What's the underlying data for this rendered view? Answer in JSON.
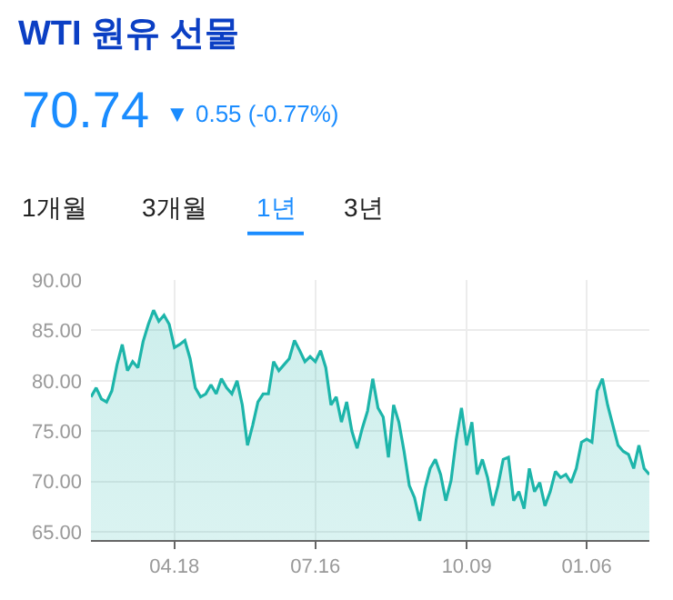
{
  "chart_data": {
    "type": "area",
    "title": "WTI 원유 선물",
    "annotations": [
      "70.74",
      "▼ 0.55 (-0.77%)",
      "1개월",
      "3개월",
      "1년",
      "3년"
    ],
    "categories": [
      null,
      null,
      null,
      null,
      null,
      null,
      null,
      null,
      null,
      null,
      null,
      null,
      null,
      null,
      null,
      null,
      "04.18",
      null,
      null,
      null,
      null,
      null,
      null,
      null,
      null,
      null,
      null,
      null,
      null,
      null,
      null,
      null,
      null,
      null,
      null,
      null,
      null,
      null,
      null,
      null,
      null,
      null,
      null,
      "07.16",
      null,
      null,
      null,
      null,
      null,
      null,
      null,
      null,
      null,
      null,
      null,
      null,
      null,
      null,
      null,
      null,
      null,
      null,
      null,
      null,
      null,
      null,
      null,
      null,
      null,
      null,
      null,
      null,
      "10.09",
      null,
      null,
      null,
      null,
      null,
      null,
      null,
      null,
      null,
      null,
      null,
      null,
      null,
      null,
      null,
      null,
      null,
      null,
      null,
      null,
      null,
      null,
      "01.06",
      null,
      null,
      null,
      null,
      null,
      null,
      null,
      null,
      null,
      null,
      null,
      null
    ],
    "series": [
      {
        "color": "#1db5aa",
        "values": [
          78.4,
          79.3,
          78.2,
          77.9,
          79.0,
          81.6,
          83.6,
          81.0,
          81.9,
          81.3,
          83.9,
          85.6,
          87.0,
          85.9,
          86.5,
          85.6,
          83.3,
          83.6,
          84.0,
          82.2,
          79.3,
          78.4,
          78.7,
          79.6,
          78.7,
          80.2,
          79.3,
          78.7,
          80.0,
          77.6,
          73.6,
          75.6,
          77.9,
          78.7,
          78.7,
          81.9,
          81.0,
          81.6,
          82.2,
          84.0,
          83.0,
          81.9,
          82.4,
          81.9,
          83.0,
          81.3,
          77.6,
          78.4,
          75.9,
          77.9,
          75.0,
          73.3,
          75.3,
          77.0,
          80.2,
          77.3,
          76.4,
          72.4,
          77.6,
          75.9,
          73.0,
          69.6,
          68.4,
          66.1,
          69.3,
          71.3,
          72.2,
          70.7,
          68.1,
          70.1,
          74.2,
          77.3,
          73.6,
          75.9,
          70.7,
          72.2,
          70.4,
          67.6,
          69.6,
          72.2,
          72.4,
          68.1,
          69.0,
          67.3,
          71.3,
          69.0,
          69.9,
          67.6,
          69.0,
          71.0,
          70.4,
          70.7,
          69.9,
          71.3,
          73.9,
          74.2,
          73.9,
          79.0,
          80.2,
          77.6,
          75.6,
          73.6,
          73.0,
          72.7,
          71.3,
          73.6,
          71.3,
          70.7
        ]
      }
    ],
    "ylim": [
      64.2,
      90
    ],
    "yticks": [
      {
        "value": 65,
        "label": "65.00"
      },
      {
        "value": 70,
        "label": "70.00"
      },
      {
        "value": 75,
        "label": "75.00"
      },
      {
        "value": 80,
        "label": "80.00"
      },
      {
        "value": 85,
        "label": "85.00"
      },
      {
        "value": 90,
        "label": "90.00"
      }
    ],
    "grid": true,
    "marker": "none",
    "line_style": "solid"
  }
}
